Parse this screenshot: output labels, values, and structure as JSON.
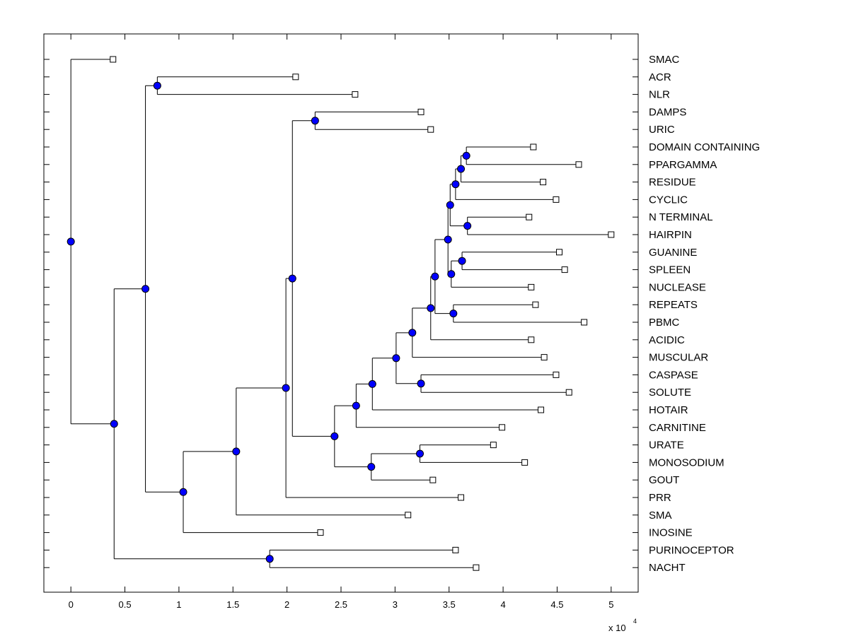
{
  "chart_data": {
    "type": "dendrogram",
    "title": "",
    "xlabel": "",
    "ylabel": "",
    "x_scale_label": "x 10",
    "x_scale_exponent": "4",
    "xlim": [
      -0.25,
      5.25
    ],
    "x_ticks": [
      0,
      0.5,
      1,
      1.5,
      2,
      2.5,
      3,
      3.5,
      4,
      4.5,
      5
    ],
    "x_tick_labels": [
      "0",
      "0.5",
      "1",
      "1.5",
      "2",
      "2.5",
      "3",
      "3.5",
      "4",
      "4.5",
      "5"
    ],
    "leaves": [
      {
        "label": "SMAC",
        "x": 0.39
      },
      {
        "label": "ACR",
        "x": 2.08
      },
      {
        "label": "NLR",
        "x": 2.63
      },
      {
        "label": "DAMPS",
        "x": 3.24
      },
      {
        "label": "URIC",
        "x": 3.33
      },
      {
        "label": "DOMAIN CONTAINING",
        "x": 4.28
      },
      {
        "label": "PPARGAMMA",
        "x": 4.7
      },
      {
        "label": "RESIDUE",
        "x": 4.37
      },
      {
        "label": "CYCLIC",
        "x": 4.49
      },
      {
        "label": "N TERMINAL",
        "x": 4.24
      },
      {
        "label": "HAIRPIN",
        "x": 5.0
      },
      {
        "label": "GUANINE",
        "x": 4.52
      },
      {
        "label": "SPLEEN",
        "x": 4.57
      },
      {
        "label": "NUCLEASE",
        "x": 4.26
      },
      {
        "label": "REPEATS",
        "x": 4.3
      },
      {
        "label": "PBMC",
        "x": 4.75
      },
      {
        "label": "ACIDIC",
        "x": 4.26
      },
      {
        "label": "MUSCULAR",
        "x": 4.38
      },
      {
        "label": "CASPASE",
        "x": 4.49
      },
      {
        "label": "SOLUTE",
        "x": 4.61
      },
      {
        "label": "HOTAIR",
        "x": 4.35
      },
      {
        "label": "CARNITINE",
        "x": 3.99
      },
      {
        "label": "URATE",
        "x": 3.91
      },
      {
        "label": "MONOSODIUM",
        "x": 4.2
      },
      {
        "label": "GOUT",
        "x": 3.35
      },
      {
        "label": "PRR",
        "x": 3.61
      },
      {
        "label": "SMA",
        "x": 3.12
      },
      {
        "label": "INOSINE",
        "x": 2.31
      },
      {
        "label": "PURINOCEPTOR",
        "x": 3.56
      },
      {
        "label": "NACHT",
        "x": 3.75
      }
    ],
    "nodes": [
      {
        "id": "n1",
        "x": 3.66,
        "children": [
          "L5",
          "L6"
        ]
      },
      {
        "id": "n2",
        "x": 3.61,
        "children": [
          "n1",
          "L7"
        ]
      },
      {
        "id": "n3",
        "x": 3.56,
        "children": [
          "n2",
          "L8"
        ]
      },
      {
        "id": "n4",
        "x": 3.67,
        "children": [
          "L9",
          "L10"
        ]
      },
      {
        "id": "n5",
        "x": 3.51,
        "children": [
          "n3",
          "n4"
        ]
      },
      {
        "id": "n6",
        "x": 3.62,
        "children": [
          "L11",
          "L12"
        ]
      },
      {
        "id": "n7",
        "x": 3.52,
        "children": [
          "n6",
          "L13"
        ]
      },
      {
        "id": "n8",
        "x": 3.49,
        "children": [
          "n5",
          "n7"
        ]
      },
      {
        "id": "n9",
        "x": 3.54,
        "children": [
          "L14",
          "L15"
        ]
      },
      {
        "id": "n10",
        "x": 3.37,
        "children": [
          "n8",
          "n9"
        ]
      },
      {
        "id": "n11",
        "x": 3.33,
        "children": [
          "n10",
          "L16"
        ]
      },
      {
        "id": "n12",
        "x": 3.16,
        "children": [
          "n11",
          "L17"
        ]
      },
      {
        "id": "n13",
        "x": 3.24,
        "children": [
          "L18",
          "L19"
        ]
      },
      {
        "id": "n14",
        "x": 3.01,
        "children": [
          "n12",
          "n13"
        ]
      },
      {
        "id": "n15",
        "x": 2.79,
        "children": [
          "n14",
          "L20"
        ]
      },
      {
        "id": "n16",
        "x": 2.64,
        "children": [
          "n15",
          "L21"
        ]
      },
      {
        "id": "n17",
        "x": 3.23,
        "children": [
          "L22",
          "L23"
        ]
      },
      {
        "id": "n18",
        "x": 2.78,
        "children": [
          "n17",
          "L24"
        ]
      },
      {
        "id": "n19",
        "x": 2.44,
        "children": [
          "n16",
          "n18"
        ]
      },
      {
        "id": "n20",
        "x": 2.26,
        "children": [
          "L3",
          "L4"
        ]
      },
      {
        "id": "n21",
        "x": 2.05,
        "children": [
          "n20",
          "n19"
        ]
      },
      {
        "id": "n22",
        "x": 1.99,
        "children": [
          "n21",
          "L25"
        ]
      },
      {
        "id": "n23",
        "x": 1.53,
        "children": [
          "n22",
          "L26"
        ]
      },
      {
        "id": "n24",
        "x": 1.04,
        "children": [
          "n23",
          "L27"
        ]
      },
      {
        "id": "n25",
        "x": 0.8,
        "children": [
          "L1",
          "L2"
        ]
      },
      {
        "id": "n26",
        "x": 0.69,
        "children": [
          "n25",
          "n24"
        ]
      },
      {
        "id": "n27",
        "x": 1.84,
        "children": [
          "L28",
          "L29"
        ]
      },
      {
        "id": "n28",
        "x": 0.4,
        "children": [
          "n26",
          "n27"
        ]
      },
      {
        "id": "n29",
        "x": 0.0,
        "children": [
          "L0",
          "n28"
        ]
      }
    ]
  }
}
